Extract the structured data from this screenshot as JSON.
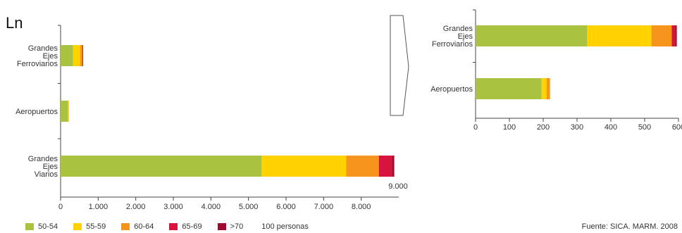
{
  "title": "Ln",
  "legend": {
    "items": [
      {
        "label": "50-54",
        "color": "#a9c23f"
      },
      {
        "label": "55-59",
        "color": "#ffd200"
      },
      {
        "label": "60-64",
        "color": "#f7941d"
      },
      {
        "label": "65-69",
        "color": "#d7143d"
      },
      {
        "label": ">70",
        "color": "#a3092f"
      }
    ],
    "note": "100 personas"
  },
  "source": "Fuente: SICA. MARM. 2008",
  "chart_data": [
    {
      "type": "bar",
      "orientation": "horizontal",
      "stacked": true,
      "categories": [
        [
          "Grandes",
          "Ejes",
          "Ferroviarios"
        ],
        [
          "Aeropuertos"
        ],
        [
          "Grandes",
          "Ejes",
          "Viarios"
        ]
      ],
      "series": [
        {
          "name": "50-54",
          "values": [
            330,
            195,
            5350
          ]
        },
        {
          "name": "55-59",
          "values": [
            190,
            15,
            2250
          ]
        },
        {
          "name": "60-64",
          "values": [
            60,
            10,
            870
          ]
        },
        {
          "name": "65-69",
          "values": [
            10,
            0,
            350
          ]
        },
        {
          "name": ">70",
          "values": [
            5,
            0,
            60
          ]
        }
      ],
      "xlim": [
        0,
        9000
      ],
      "xticks": [
        "0",
        "1.000",
        "2.000",
        "3.000",
        "4.000",
        "5.000",
        "6.000",
        "7.000",
        "8.000"
      ],
      "xtick_values": [
        0,
        1000,
        2000,
        3000,
        4000,
        5000,
        6000,
        7000,
        8000
      ],
      "axis_max_label": "9.000"
    },
    {
      "type": "bar",
      "orientation": "horizontal",
      "stacked": true,
      "categories": [
        [
          "Grandes",
          "Ejes",
          "Ferroviarios"
        ],
        [
          "Aeropuertos"
        ]
      ],
      "series": [
        {
          "name": "50-54",
          "values": [
            330,
            195
          ]
        },
        {
          "name": "55-59",
          "values": [
            190,
            15
          ]
        },
        {
          "name": "60-64",
          "values": [
            60,
            10
          ]
        },
        {
          "name": "65-69",
          "values": [
            10,
            0
          ]
        },
        {
          "name": ">70",
          "values": [
            5,
            0
          ]
        }
      ],
      "xlim": [
        0,
        600
      ],
      "xticks": [
        "0",
        "100",
        "200",
        "300",
        "400",
        "500",
        "600"
      ],
      "xtick_values": [
        0,
        100,
        200,
        300,
        400,
        500,
        600
      ]
    }
  ]
}
